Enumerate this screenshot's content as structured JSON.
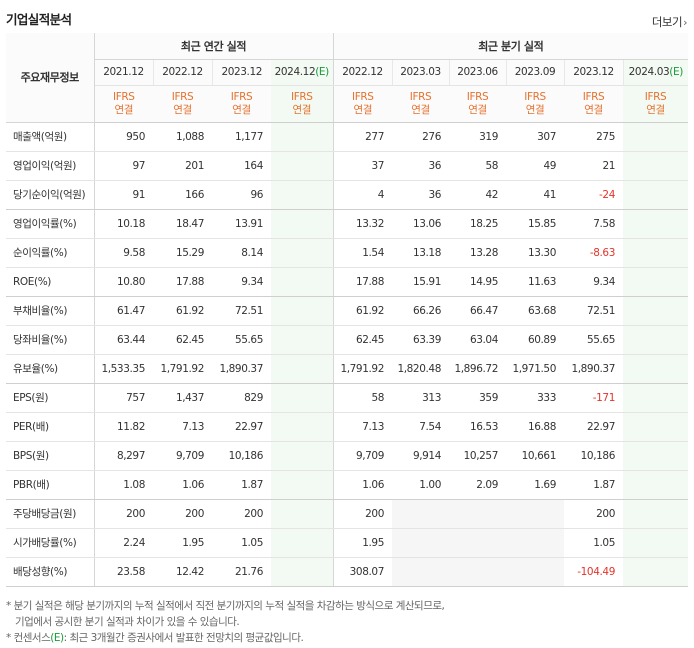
{
  "header": {
    "title": "기업실적분석",
    "more_label": "더보기"
  },
  "table": {
    "row_header_label": "주요재무정보",
    "group_annual": "최근 연간 실적",
    "group_quarterly": "최근 분기 실적",
    "annual_periods": [
      "2021.12",
      "2022.12",
      "2023.12",
      "2024.12"
    ],
    "quarterly_periods": [
      "2022.12",
      "2023.03",
      "2023.06",
      "2023.09",
      "2023.12",
      "2024.03"
    ],
    "estimate_suffix": "(E)",
    "std_line1": "IFRS",
    "std_line2": "연결",
    "rows": [
      {
        "label": "매출액(억원)",
        "annual": [
          "950",
          "1,088",
          "1,177",
          ""
        ],
        "quarterly": [
          "277",
          "276",
          "319",
          "307",
          "275",
          ""
        ]
      },
      {
        "label": "영업이익(억원)",
        "annual": [
          "97",
          "201",
          "164",
          ""
        ],
        "quarterly": [
          "37",
          "36",
          "58",
          "49",
          "21",
          ""
        ]
      },
      {
        "label": "당기순이익(억원)",
        "annual": [
          "91",
          "166",
          "96",
          ""
        ],
        "quarterly": [
          "4",
          "36",
          "42",
          "41",
          "-24",
          ""
        ]
      },
      {
        "label": "영업이익률(%)",
        "annual": [
          "10.18",
          "18.47",
          "13.91",
          ""
        ],
        "quarterly": [
          "13.32",
          "13.06",
          "18.25",
          "15.85",
          "7.58",
          ""
        ]
      },
      {
        "label": "순이익률(%)",
        "annual": [
          "9.58",
          "15.29",
          "8.14",
          ""
        ],
        "quarterly": [
          "1.54",
          "13.18",
          "13.28",
          "13.30",
          "-8.63",
          ""
        ]
      },
      {
        "label": "ROE(%)",
        "annual": [
          "10.80",
          "17.88",
          "9.34",
          ""
        ],
        "quarterly": [
          "17.88",
          "15.91",
          "14.95",
          "11.63",
          "9.34",
          ""
        ]
      },
      {
        "label": "부채비율(%)",
        "annual": [
          "61.47",
          "61.92",
          "72.51",
          ""
        ],
        "quarterly": [
          "61.92",
          "66.26",
          "66.47",
          "63.68",
          "72.51",
          ""
        ]
      },
      {
        "label": "당좌비율(%)",
        "annual": [
          "63.44",
          "62.45",
          "55.65",
          ""
        ],
        "quarterly": [
          "62.45",
          "63.39",
          "63.04",
          "60.89",
          "55.65",
          ""
        ]
      },
      {
        "label": "유보율(%)",
        "annual": [
          "1,533.35",
          "1,791.92",
          "1,890.37",
          ""
        ],
        "quarterly": [
          "1,791.92",
          "1,820.48",
          "1,896.72",
          "1,971.50",
          "1,890.37",
          ""
        ]
      },
      {
        "label": "EPS(원)",
        "annual": [
          "757",
          "1,437",
          "829",
          ""
        ],
        "quarterly": [
          "58",
          "313",
          "359",
          "333",
          "-171",
          ""
        ]
      },
      {
        "label": "PER(배)",
        "annual": [
          "11.82",
          "7.13",
          "22.97",
          ""
        ],
        "quarterly": [
          "7.13",
          "7.54",
          "16.53",
          "16.88",
          "22.97",
          ""
        ]
      },
      {
        "label": "BPS(원)",
        "annual": [
          "8,297",
          "9,709",
          "10,186",
          ""
        ],
        "quarterly": [
          "9,709",
          "9,914",
          "10,257",
          "10,661",
          "10,186",
          ""
        ]
      },
      {
        "label": "PBR(배)",
        "annual": [
          "1.08",
          "1.06",
          "1.87",
          ""
        ],
        "quarterly": [
          "1.06",
          "1.00",
          "2.09",
          "1.69",
          "1.87",
          ""
        ]
      },
      {
        "label": "주당배당금(원)",
        "annual": [
          "200",
          "200",
          "200",
          ""
        ],
        "quarterly": [
          "200",
          "",
          "",
          "",
          "200",
          ""
        ]
      },
      {
        "label": "시가배당률(%)",
        "annual": [
          "2.24",
          "1.95",
          "1.05",
          ""
        ],
        "quarterly": [
          "1.95",
          "",
          "",
          "",
          "1.05",
          ""
        ]
      },
      {
        "label": "배당성향(%)",
        "annual": [
          "23.58",
          "12.42",
          "21.76",
          ""
        ],
        "quarterly": [
          "308.07",
          "",
          "",
          "",
          "-104.49",
          ""
        ]
      }
    ]
  },
  "notes": {
    "line1": "* 분기 실적은 해당 분기까지의 누적 실적에서 직전 분기까지의 누적 실적을 차감하는 방식으로 계산되므로,",
    "line2": "기업에서 공시한 분기 실적과 차이가 있을 수 있습니다.",
    "line3_prefix": "* 컨센서스",
    "line3_mark": "(E)",
    "line3_rest": ": 최근 3개월간 증권사에서 발표한 전망치의 평균값입니다."
  },
  "colors": {
    "ifrs": "#e5722f",
    "negative": "#e3342b",
    "estimate": "#1a9a3a",
    "estimate_bg": "#f3faf3",
    "blank_bg": "#f6f6f6"
  }
}
